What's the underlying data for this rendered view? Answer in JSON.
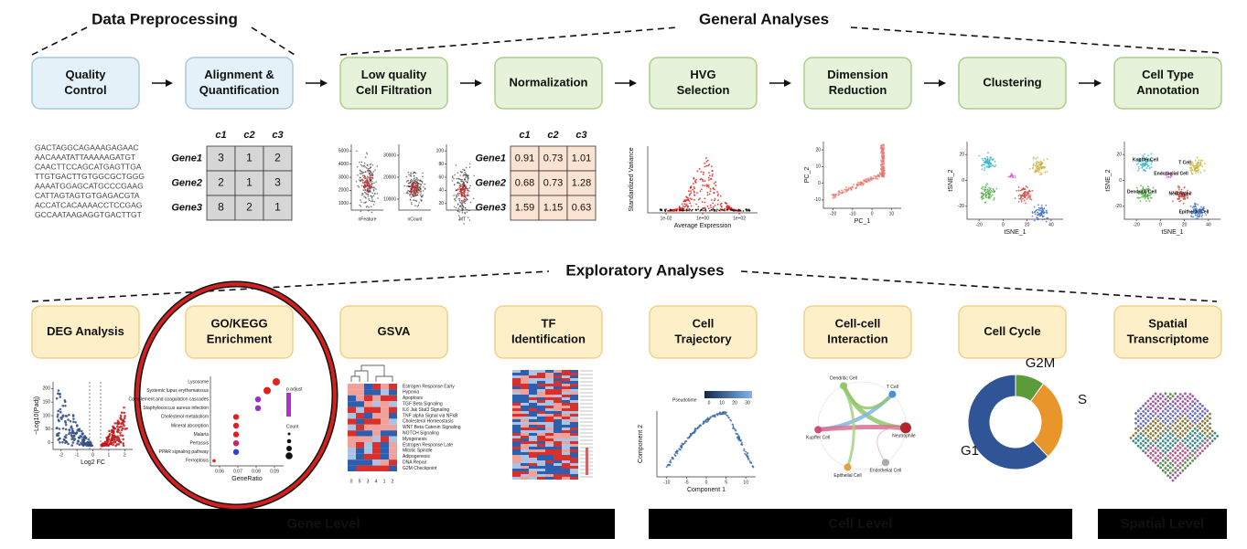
{
  "sections": {
    "preprocessing": "Data Preprocessing",
    "general": "General Analyses",
    "exploratory": "Exploratory Analyses"
  },
  "general_steps": [
    [
      "Quality",
      "Control"
    ],
    [
      "Alignment &",
      "Quantification"
    ],
    [
      "Low quality",
      "Cell Filtration"
    ],
    [
      "Normalization"
    ],
    [
      "HVG",
      "Selection"
    ],
    [
      "Dimension",
      "Reduction"
    ],
    [
      "Clustering"
    ],
    [
      "Cell Type",
      "Annotation"
    ]
  ],
  "sequences": [
    "GACTAGGCAGAAAGAGAAC",
    "AACAAATATTAAAAAGATGT",
    "CAACTTCCAGCATGAGTTGA",
    "TTGTGACTTGTGGCGCTGGG",
    "AAAATGGAGCATGCCCGAAG",
    "CATTAGTAGTGTGAGACGTA",
    "ACCATCACAAAACCTCCGAG",
    "GCCAATAAGAGGTGACTTGT"
  ],
  "raw_matrix": {
    "columns": [
      "c1",
      "c2",
      "c3"
    ],
    "rows": [
      {
        "gene": "Gene1",
        "values": [
          3,
          1,
          2
        ]
      },
      {
        "gene": "Gene2",
        "values": [
          2,
          1,
          3
        ]
      },
      {
        "gene": "Gene3",
        "values": [
          8,
          2,
          1
        ]
      }
    ]
  },
  "normalized_matrix": {
    "columns": [
      "c1",
      "c2",
      "c3"
    ],
    "rows": [
      {
        "gene": "Gene1",
        "values": [
          0.91,
          0.73,
          1.01
        ]
      },
      {
        "gene": "Gene2",
        "values": [
          0.68,
          0.73,
          1.28
        ]
      },
      {
        "gene": "Gene3",
        "values": [
          1.59,
          1.15,
          0.63
        ]
      }
    ]
  },
  "qc_plots": [
    {
      "label": "nFeature",
      "ticks": [
        1000,
        2000,
        3000,
        4000,
        5000
      ]
    },
    {
      "label": "nCount",
      "ticks": [
        10000,
        20000,
        30000
      ]
    },
    {
      "label": "MT",
      "ticks": [
        20,
        40,
        60,
        80,
        100
      ]
    }
  ],
  "hvg": {
    "ylabel": "Standardized Variance",
    "xlabel": "Average Expression",
    "xticks": [
      "1e-02",
      "1e+00",
      "1e+02"
    ]
  },
  "pca": {
    "xlabel": "PC_1",
    "ylabel": "PC_2",
    "xticks": [
      -20,
      -10,
      0,
      10
    ],
    "yticks": [
      -10,
      0,
      10,
      20
    ]
  },
  "clustering": {
    "xlabel": "tSNE_1",
    "ylabel": "tSNE_2",
    "xticks": [
      -20,
      0,
      20,
      40
    ],
    "yticks": [
      -20,
      0,
      20
    ]
  },
  "annotation": {
    "xlabel": "tSNE_1",
    "ylabel": "tSNE_2",
    "xticks": [
      -20,
      0,
      20,
      40
    ],
    "yticks": [
      -20,
      0,
      20
    ],
    "cells": [
      "Kupffer Cell",
      "T Cell",
      "Endothelial Cell",
      "Dendritic Cell",
      "Neutrophil",
      "Epithelial Cell"
    ]
  },
  "exploratory_steps": [
    [
      "DEG Analysis"
    ],
    [
      "GO/KEGG",
      "Enrichment"
    ],
    [
      "GSVA"
    ],
    [
      "TF",
      "Identification"
    ],
    [
      "Cell",
      "Trajectory"
    ],
    [
      "Cell-cell",
      "Interaction"
    ],
    [
      "Cell Cycle"
    ],
    [
      "Spatial",
      "Transcriptome"
    ]
  ],
  "deg": {
    "xlabel": "Log2 FC",
    "ylabel": "−Log10(Padj)",
    "xticks": [
      -2,
      -1,
      0,
      1,
      2
    ],
    "yticks": [
      0,
      50,
      100,
      150,
      200
    ]
  },
  "go": {
    "terms": [
      "Lysosome",
      "Systemic lupus erythematosus",
      "Complement and coagulation cascades",
      "Staphylococcus aureus infection",
      "Cholesterol metabolism",
      "Mineral absorption",
      "Malaria",
      "Pertussis",
      "PPAR signaling pathway",
      "Ferroptosis"
    ],
    "xlabel": "GeneRatio",
    "xticks": [
      0.06,
      0.07,
      0.08,
      0.09
    ],
    "color_legend": "p.adjust",
    "size_legend": "Count"
  },
  "gsva": {
    "pathways": [
      "Estrogen Response Early",
      "Hypoxia",
      "Apoptosis",
      "TGF Beta Signaling",
      "IL6 Jak Stat3 Signaling",
      "TNF alpha Signal via NFkB",
      "Cholesterol Homeostasis",
      "WNT Beta Catenin Signaling",
      "NOTCH Signaling",
      "Myogenesis",
      "Estrogen Response Late",
      "Mitotic Spindle",
      "Adipogenesis",
      "DNA Repair",
      "G2M Checkpoint"
    ],
    "columns": [
      "0",
      "5",
      "3",
      "4",
      "1",
      "2"
    ]
  },
  "trajectory": {
    "legend": "Pseudotime",
    "legend_ticks": [
      0,
      10,
      20,
      30
    ],
    "xlabel": "Component 1",
    "ylabel": "Component 2",
    "xticks": [
      -10,
      -5,
      0,
      5,
      10
    ]
  },
  "interaction": {
    "cells": [
      "Dendritic Cell",
      "T Cell",
      "Kupffer Cell",
      "Neutrophile",
      "Epithelial Cell",
      "Endothelial Cell"
    ]
  },
  "cell_cycle": {
    "phases": [
      {
        "name": "G2M",
        "value": 10,
        "color": "#5b9b3a"
      },
      {
        "name": "S",
        "value": 28,
        "color": "#e8962a"
      },
      {
        "name": "G1",
        "value": 62,
        "color": "#2f5597"
      }
    ]
  },
  "levels": [
    "Gene Level",
    "Cell Level",
    "Spatial Level"
  ]
}
